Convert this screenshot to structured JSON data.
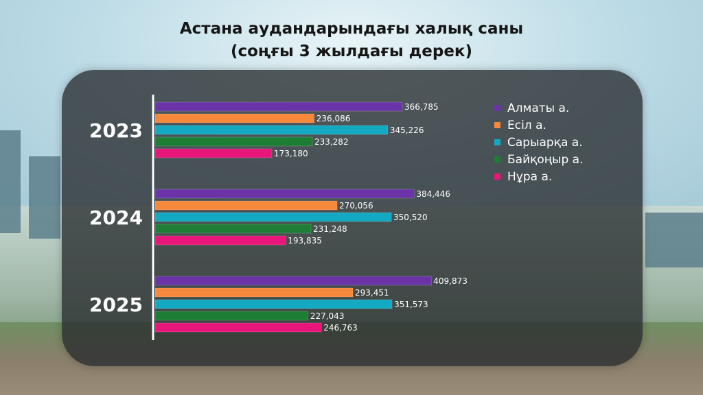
{
  "chart_data": {
    "type": "bar",
    "orientation": "horizontal",
    "title": "Астана аудандарындағы халық саны",
    "subtitle": "(соңғы 3 жылдағы дерек)",
    "categories": [
      "2023",
      "2024",
      "2025"
    ],
    "series": [
      {
        "name": "Алматы а.",
        "color": "#6a34a8",
        "values": [
          366785,
          384446,
          409873
        ],
        "labels": [
          "366,785",
          "384,446",
          "409,873"
        ]
      },
      {
        "name": "Есіл а.",
        "color": "#f5883a",
        "values": [
          236086,
          270056,
          293451
        ],
        "labels": [
          "236,086",
          "270,056",
          "293,451"
        ]
      },
      {
        "name": "Сарыарқа а.",
        "color": "#13a9c3",
        "values": [
          345226,
          350520,
          351573
        ],
        "labels": [
          "345,226",
          "350,520",
          "351,573"
        ]
      },
      {
        "name": "Байқоңыр а.",
        "color": "#1e7d34",
        "values": [
          233282,
          231248,
          227043
        ],
        "labels": [
          "233,282",
          "231,248",
          "227,043"
        ]
      },
      {
        "name": "Нұра а.",
        "color": "#e8157a",
        "values": [
          173180,
          193835,
          246763
        ],
        "labels": [
          "173,180",
          "193,835",
          "246,763"
        ]
      }
    ],
    "xlim": [
      0,
      440000
    ],
    "legend": "top-right",
    "grid": false
  }
}
